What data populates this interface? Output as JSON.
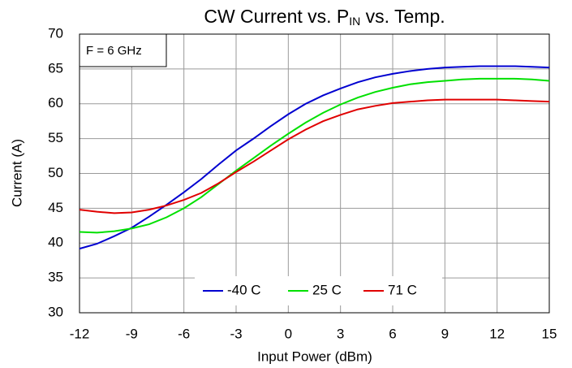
{
  "chart_data": {
    "type": "line",
    "title": [
      "CW Current vs. P",
      "IN",
      " vs. Temp."
    ],
    "annotation": "F = 6 GHz",
    "x_label": "Input Power (dBm)",
    "y_label": "Current (A)",
    "x": [
      -12,
      -11,
      -10,
      -9,
      -8,
      -7,
      -6,
      -5,
      -4,
      -3,
      -2,
      -1,
      0,
      1,
      2,
      3,
      4,
      5,
      6,
      7,
      8,
      9,
      10,
      11,
      12,
      13,
      14,
      15
    ],
    "series": [
      {
        "name": "-40 C",
        "color": "#0000d0",
        "values": [
          39.2,
          39.9,
          41,
          42.2,
          43.8,
          45.5,
          47.3,
          49.2,
          51.3,
          53.3,
          55,
          56.8,
          58.5,
          60,
          61.2,
          62.2,
          63.1,
          63.8,
          64.3,
          64.7,
          65,
          65.2,
          65.3,
          65.4,
          65.4,
          65.4,
          65.3,
          65.2
        ]
      },
      {
        "name": "25 C",
        "color": "#00e000",
        "values": [
          41.6,
          41.5,
          41.7,
          42.1,
          42.7,
          43.7,
          45,
          46.6,
          48.5,
          50.4,
          52.2,
          54,
          55.7,
          57.3,
          58.7,
          59.9,
          60.9,
          61.7,
          62.3,
          62.8,
          63.1,
          63.3,
          63.5,
          63.6,
          63.6,
          63.6,
          63.5,
          63.3
        ]
      },
      {
        "name": "71 C",
        "color": "#e00000",
        "values": [
          44.8,
          44.5,
          44.3,
          44.4,
          44.8,
          45.4,
          46.2,
          47.2,
          48.6,
          50.2,
          51.7,
          53.3,
          54.9,
          56.3,
          57.5,
          58.4,
          59.2,
          59.7,
          60.1,
          60.3,
          60.5,
          60.6,
          60.6,
          60.6,
          60.6,
          60.5,
          60.4,
          60.3
        ]
      }
    ],
    "xlim": [
      -12,
      15
    ],
    "xticks": [
      -12,
      -9,
      -6,
      -3,
      0,
      3,
      6,
      9,
      12,
      15
    ],
    "ylim": [
      30,
      70
    ],
    "yticks": [
      30,
      35,
      40,
      45,
      50,
      55,
      60,
      65,
      70
    ],
    "grid": true,
    "legend": "bottom"
  }
}
